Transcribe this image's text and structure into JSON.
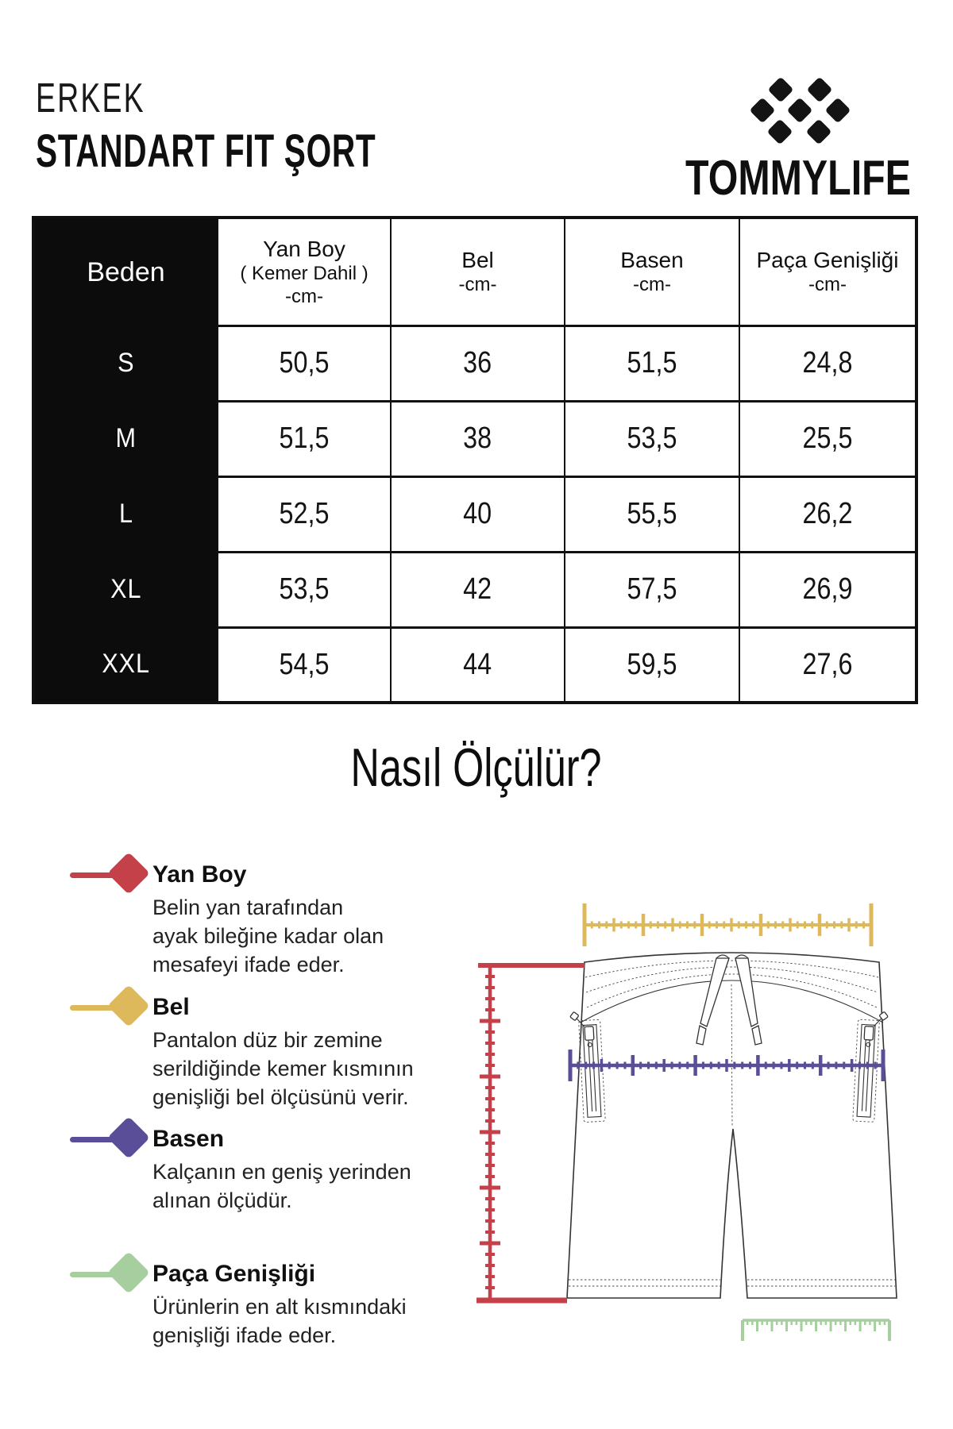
{
  "header": {
    "category": "ERKEK",
    "product": "STANDART FIT ŞORT",
    "brand": "TOMMYLIFE",
    "logo_icon": "tommylife-diamonds-logo"
  },
  "size_table": {
    "corner_label": "Beden",
    "columns": [
      {
        "title": "Yan Boy",
        "subtitle": "( Kemer Dahil )",
        "unit": "-cm-"
      },
      {
        "title": "Bel",
        "subtitle": "",
        "unit": "-cm-"
      },
      {
        "title": "Basen",
        "subtitle": "",
        "unit": "-cm-"
      },
      {
        "title": "Paça Genişliği",
        "subtitle": "",
        "unit": "-cm-"
      }
    ],
    "rows": [
      {
        "size": "S",
        "values": [
          "50,5",
          "36",
          "51,5",
          "24,8"
        ]
      },
      {
        "size": "M",
        "values": [
          "51,5",
          "38",
          "53,5",
          "25,5"
        ]
      },
      {
        "size": "L",
        "values": [
          "52,5",
          "40",
          "55,5",
          "26,2"
        ]
      },
      {
        "size": "XL",
        "values": [
          "53,5",
          "42",
          "57,5",
          "26,9"
        ]
      },
      {
        "size": "XXL",
        "values": [
          "54,5",
          "44",
          "59,5",
          "27,6"
        ]
      }
    ]
  },
  "how_to_measure": {
    "heading": "Nasıl Ölçülür?",
    "legend": [
      {
        "label": "Yan Boy",
        "color": "#C4414A",
        "lines": [
          "Belin yan tarafından",
          "ayak bileğine kadar olan",
          "mesafeyi ifade eder."
        ]
      },
      {
        "label": "Bel",
        "color": "#DDB95C",
        "lines": [
          "Pantalon düz bir zemine",
          "serildiğinde kemer kısmının",
          "genişliği bel ölçüsünü verir."
        ]
      },
      {
        "label": "Basen",
        "color": "#5A4E99",
        "lines": [
          "Kalçanın en geniş yerinden",
          "alınan ölçüdür."
        ]
      },
      {
        "label": "Paça Genişliği",
        "color": "#A6CE9F",
        "lines": [
          "Ürünlerin en alt kısmındaki",
          "genişliği ifade eder."
        ]
      }
    ]
  }
}
